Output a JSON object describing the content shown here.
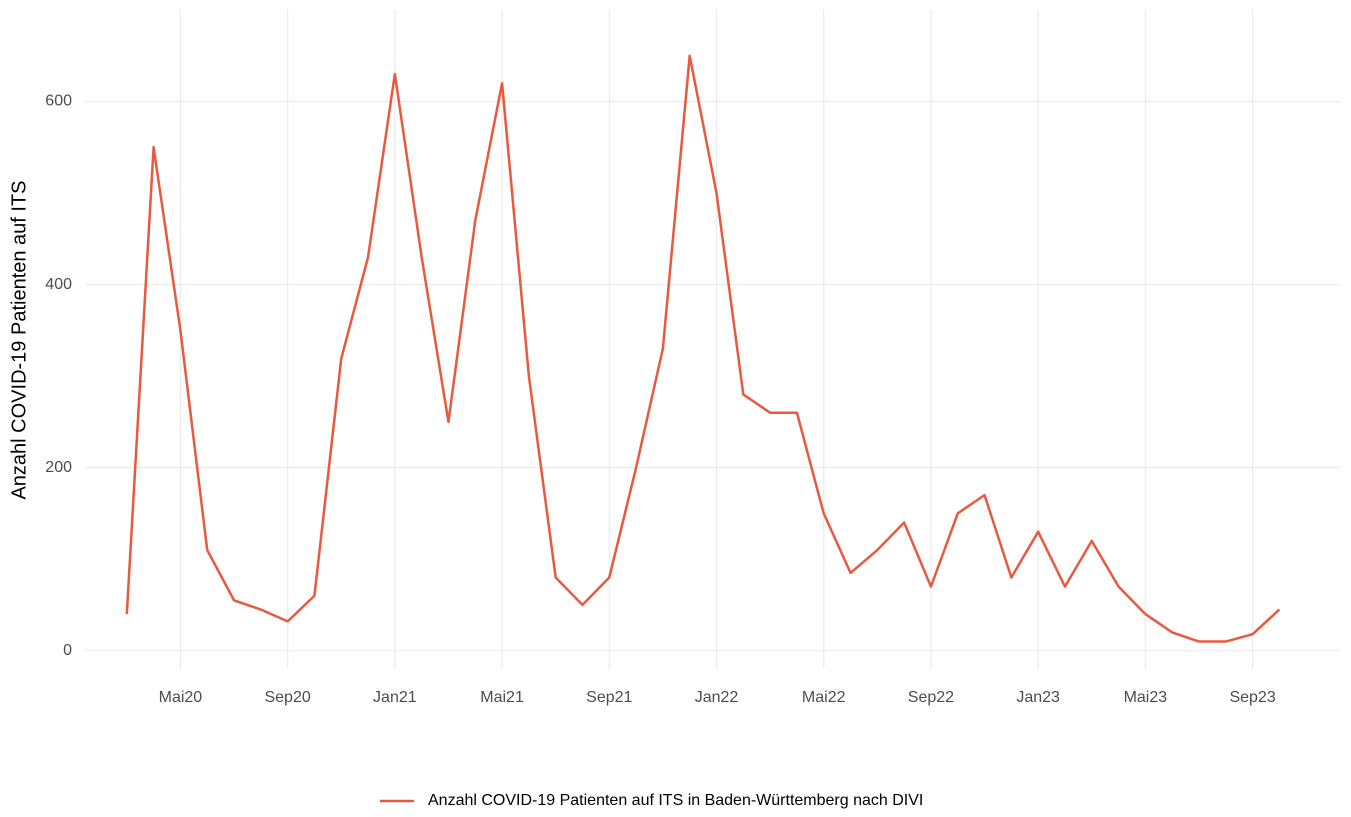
{
  "chart_data": {
    "type": "line",
    "ylabel": "Anzahl COVID-19 Patienten auf ITS",
    "x": [
      "2020-03",
      "2020-04",
      "2020-05",
      "2020-06",
      "2020-07",
      "2020-08",
      "2020-09",
      "2020-10",
      "2020-11",
      "2020-12",
      "2021-01",
      "2021-02",
      "2021-03",
      "2021-04",
      "2021-05",
      "2021-06",
      "2021-07",
      "2021-08",
      "2021-09",
      "2021-10",
      "2021-11",
      "2021-12",
      "2022-01",
      "2022-02",
      "2022-03",
      "2022-04",
      "2022-05",
      "2022-06",
      "2022-07",
      "2022-08",
      "2022-09",
      "2022-10",
      "2022-11",
      "2022-12",
      "2023-01",
      "2023-02",
      "2023-03",
      "2023-04",
      "2023-05",
      "2023-06",
      "2023-07",
      "2023-08",
      "2023-09",
      "2023-10"
    ],
    "series": [
      {
        "name": "Anzahl COVID-19 Patienten auf ITS in Baden-Württemberg nach DIVI",
        "color": "#e8593f",
        "values": [
          40,
          550,
          350,
          110,
          55,
          45,
          32,
          60,
          319,
          430,
          630,
          430,
          250,
          470,
          620,
          300,
          80,
          50,
          80,
          200,
          330,
          650,
          500,
          280,
          260,
          260,
          150,
          85,
          110,
          140,
          70,
          150,
          170,
          80,
          130,
          70,
          120,
          70,
          40,
          20,
          10,
          10,
          18,
          45
        ]
      }
    ],
    "xlim": [
      "2020-02",
      "2023-12"
    ],
    "xticks": [
      {
        "value": "2020-05",
        "label": "Mai20"
      },
      {
        "value": "2020-09",
        "label": "Sep20"
      },
      {
        "value": "2021-01",
        "label": "Jan21"
      },
      {
        "value": "2021-05",
        "label": "Mai21"
      },
      {
        "value": "2021-09",
        "label": "Sep21"
      },
      {
        "value": "2022-01",
        "label": "Jan22"
      },
      {
        "value": "2022-05",
        "label": "Mai22"
      },
      {
        "value": "2022-09",
        "label": "Sep22"
      },
      {
        "value": "2023-01",
        "label": "Jan23"
      },
      {
        "value": "2023-05",
        "label": "Mai23"
      },
      {
        "value": "2023-09",
        "label": "Sep23"
      }
    ],
    "ylim": [
      -20,
      700
    ],
    "yticks": [
      0,
      200,
      400,
      600
    ],
    "grid": true,
    "legend": "bottom"
  }
}
